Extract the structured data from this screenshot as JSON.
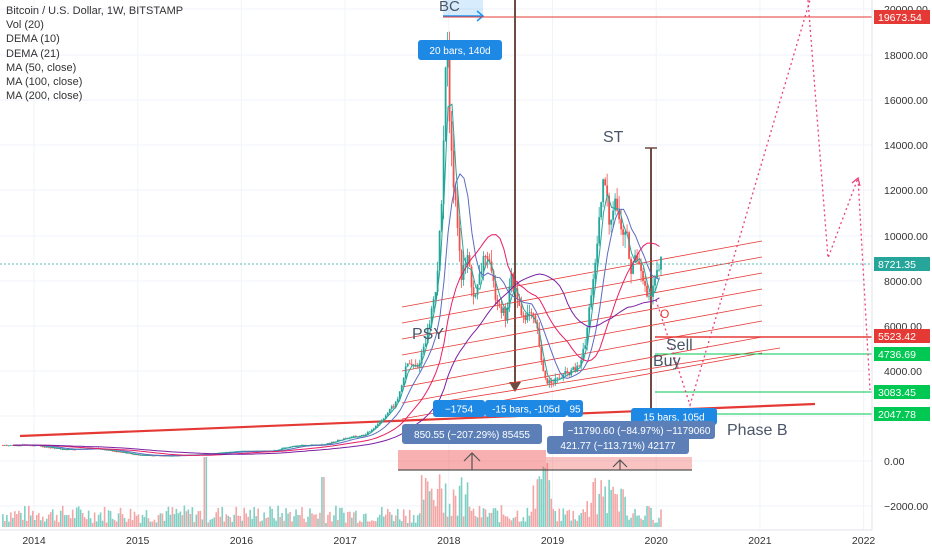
{
  "legend": {
    "symbol": "Bitcoin / U.S. Dollar, 1W, BITSTAMP",
    "ind1": "Vol (20)",
    "ind2": "DEMA (10)",
    "ind3": "DEMA (21)",
    "ind4": "MA (50, close)",
    "ind5": "MA (100, close)",
    "ind6": "MA (200, close)"
  },
  "annotations": {
    "bc": "BC",
    "st": "ST",
    "psy": "PSY",
    "sell": "Sell",
    "buy": "Buy",
    "phase_b": "Phase B",
    "o": "O",
    "bars_top": "20 bars, 140d",
    "measure1a": "−1754",
    "measure1b": "-15 bars, -105d",
    "measure1c": "95",
    "measure2": "850.55 (−207.29%) 85455",
    "measure3": "15 bars, 105d",
    "measure4": "−11790.60 (−84.97%) −1179060",
    "measure5": "421.77 (−113.71%) 42177"
  },
  "price_labels": [
    {
      "text": "19673.54",
      "color": "#e53935"
    },
    {
      "text": "8721.35",
      "color": "#26a69a"
    },
    {
      "text": "5523.42",
      "color": "#e53935"
    },
    {
      "text": "4736.69",
      "color": "#00c853"
    },
    {
      "text": "3083.45",
      "color": "#00c853"
    },
    {
      "text": "2047.78",
      "color": "#00c853"
    }
  ],
  "chart_data": {
    "type": "candlestick",
    "yticks": [
      "20000.00",
      "18000.00",
      "16000.00",
      "14000.00",
      "12000.00",
      "10000.00",
      "8000.00",
      "6000.00",
      "4000.00",
      "2000.00",
      "0.00",
      "−2000.00"
    ],
    "xticks": [
      "2014",
      "2015",
      "2016",
      "2017",
      "2018",
      "2019",
      "2020",
      "2021",
      "2022"
    ],
    "close_path": [
      [
        2014.0,
        700
      ],
      [
        2014.3,
        500
      ],
      [
        2014.6,
        550
      ],
      [
        2014.9,
        350
      ],
      [
        2015.0,
        260
      ],
      [
        2015.3,
        230
      ],
      [
        2015.6,
        280
      ],
      [
        2015.85,
        380
      ],
      [
        2016.0,
        430
      ],
      [
        2016.3,
        440
      ],
      [
        2016.5,
        670
      ],
      [
        2016.8,
        720
      ],
      [
        2017.0,
        1000
      ],
      [
        2017.2,
        1150
      ],
      [
        2017.35,
        1800
      ],
      [
        2017.5,
        2600
      ],
      [
        2017.6,
        4300
      ],
      [
        2017.7,
        4100
      ],
      [
        2017.8,
        5800
      ],
      [
        2017.88,
        7800
      ],
      [
        2017.93,
        11000
      ],
      [
        2017.96,
        16500
      ],
      [
        2017.98,
        18900
      ],
      [
        2018.02,
        13500
      ],
      [
        2018.08,
        11000
      ],
      [
        2018.12,
        8000
      ],
      [
        2018.18,
        9000
      ],
      [
        2018.25,
        7000
      ],
      [
        2018.35,
        9300
      ],
      [
        2018.45,
        7400
      ],
      [
        2018.55,
        6300
      ],
      [
        2018.6,
        8100
      ],
      [
        2018.7,
        6500
      ],
      [
        2018.8,
        6400
      ],
      [
        2018.86,
        5600
      ],
      [
        2018.9,
        4000
      ],
      [
        2018.95,
        3500
      ],
      [
        2019.05,
        3600
      ],
      [
        2019.15,
        3900
      ],
      [
        2019.25,
        4100
      ],
      [
        2019.32,
        5200
      ],
      [
        2019.38,
        7800
      ],
      [
        2019.42,
        8700
      ],
      [
        2019.47,
        11500
      ],
      [
        2019.5,
        12500
      ],
      [
        2019.55,
        10500
      ],
      [
        2019.6,
        11800
      ],
      [
        2019.65,
        10300
      ],
      [
        2019.72,
        9800
      ],
      [
        2019.76,
        8200
      ],
      [
        2019.8,
        9200
      ],
      [
        2019.86,
        8600
      ],
      [
        2019.9,
        7300
      ],
      [
        2019.95,
        7200
      ],
      [
        2020.0,
        8100
      ],
      [
        2020.04,
        8721
      ]
    ]
  }
}
